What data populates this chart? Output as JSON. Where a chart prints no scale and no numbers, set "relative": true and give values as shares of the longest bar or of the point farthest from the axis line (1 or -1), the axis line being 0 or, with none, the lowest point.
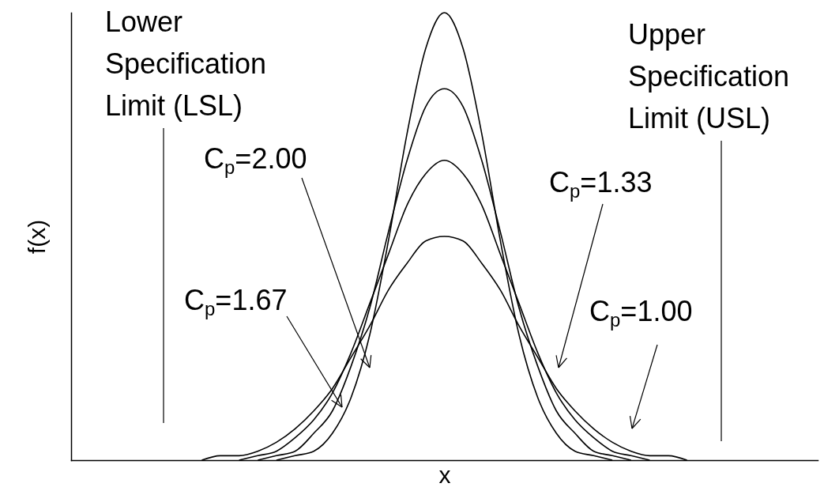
{
  "chart_data": {
    "type": "line",
    "relative": true,
    "xlabel": "x",
    "ylabel": "f(x)",
    "grid": false,
    "tick_labels": false,
    "marker": "none",
    "line_style": "solid",
    "categories": [
      null,
      null,
      null,
      null,
      null,
      null,
      null,
      null,
      null,
      null,
      null,
      null,
      null,
      null,
      null,
      null,
      null,
      null,
      null,
      null,
      null,
      null,
      null,
      null,
      null,
      null,
      null,
      null,
      null,
      null,
      null,
      null,
      null,
      null,
      null,
      null,
      null,
      null,
      null,
      null,
      null
    ],
    "series": [
      {
        "color": "#000000",
        "values": [
          null,
          null,
          null,
          null,
          null,
          null,
          null,
          null,
          null,
          null,
          null,
          0,
          0.01,
          0.02,
          0.06,
          0.14,
          0.28,
          0.49,
          0.73,
          0.92,
          1,
          0.92,
          0.73,
          0.49,
          0.28,
          0.14,
          0.06,
          0.02,
          0.01,
          0,
          null,
          null,
          null,
          null,
          null,
          null,
          null,
          null,
          null,
          null,
          null
        ]
      },
      {
        "color": "#000000",
        "values": [
          null,
          null,
          null,
          null,
          null,
          null,
          null,
          null,
          null,
          null,
          0,
          0.01,
          0.02,
          0.06,
          0.11,
          0.21,
          0.34,
          0.51,
          0.67,
          0.79,
          0.83,
          0.79,
          0.67,
          0.51,
          0.34,
          0.21,
          0.11,
          0.06,
          0.02,
          0.01,
          0,
          null,
          null,
          null,
          null,
          null,
          null,
          null,
          null,
          null,
          null
        ]
      },
      {
        "color": "#000000",
        "values": [
          null,
          null,
          null,
          null,
          null,
          null,
          null,
          null,
          null,
          0,
          0.01,
          0.02,
          0.05,
          0.09,
          0.15,
          0.24,
          0.35,
          0.46,
          0.57,
          0.64,
          0.67,
          0.64,
          0.57,
          0.46,
          0.35,
          0.24,
          0.15,
          0.09,
          0.05,
          0.02,
          0.01,
          0,
          null,
          null,
          null,
          null,
          null,
          null,
          null,
          null,
          null
        ]
      },
      {
        "color": "#000000",
        "values": [
          null,
          null,
          null,
          null,
          null,
          null,
          null,
          0,
          0.01,
          0.01,
          0.02,
          0.04,
          0.07,
          0.11,
          0.16,
          0.23,
          0.3,
          0.38,
          0.44,
          0.49,
          0.5,
          0.49,
          0.44,
          0.38,
          0.3,
          0.23,
          0.16,
          0.11,
          0.07,
          0.04,
          0.02,
          0.01,
          0.01,
          0,
          null,
          null,
          null,
          null,
          null,
          null,
          null
        ]
      }
    ],
    "annotations": [
      "Lower Specification Limit (LSL)",
      "Upper Specification Limit (USL)",
      "C$_{p}$=2.00",
      "C$_{p}$=1.33",
      "C$_{p}$=1.67",
      "C$_{p}$=1.00"
    ]
  }
}
